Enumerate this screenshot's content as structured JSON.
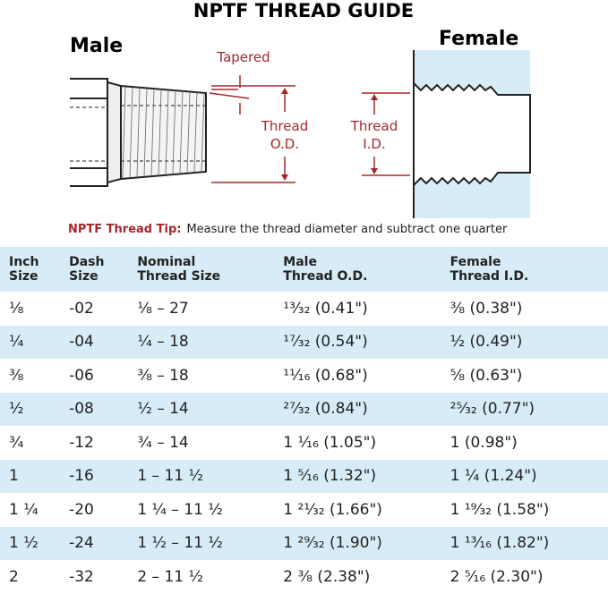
{
  "title": "NPTF THREAD GUIDE",
  "diagram": {
    "male": "Male",
    "female": "Female",
    "tapered": "Tapered",
    "thread_od": [
      "Thread",
      "O.D."
    ],
    "thread_id": [
      "Thread",
      "I.D."
    ]
  },
  "tip": {
    "label": "NPTF Thread Tip:",
    "text": "Measure the thread diameter and subtract one quarter"
  },
  "table": {
    "header": [
      [
        "Inch",
        "Size"
      ],
      [
        "Dash",
        "Size"
      ],
      [
        "Nominal",
        "Thread Size"
      ],
      [
        "Male",
        "Thread O.D."
      ],
      [
        "Female",
        "Thread I.D."
      ]
    ],
    "rows": [
      [
        "⅛",
        "-02",
        "⅛ – 27",
        "¹³⁄₃₂ (0.41\")",
        "⅜ (0.38\")"
      ],
      [
        "¼",
        "-04",
        "¼ – 18",
        "¹⁷⁄₃₂ (0.54\")",
        "½ (0.49\")"
      ],
      [
        "⅜",
        "-06",
        "⅜ – 18",
        "¹¹⁄₁₆ (0.68\")",
        "⅝ (0.63\")"
      ],
      [
        "½",
        "-08",
        "½ – 14",
        "²⁷⁄₃₂ (0.84\")",
        "²⁵⁄₃₂ (0.77\")"
      ],
      [
        "¾",
        "-12",
        "¾ – 14",
        "1 ¹⁄₁₆ (1.05\")",
        "1 (0.98\")"
      ],
      [
        "1",
        "-16",
        "1 – 11 ½",
        "1 ⁵⁄₁₆ (1.32\")",
        "1 ¼ (1.24\")"
      ],
      [
        "1 ¼",
        "-20",
        "1 ¼ – 11 ½",
        "1 ²¹⁄₃₂ (1.66\")",
        "1 ¹⁹⁄₃₂ (1.58\")"
      ],
      [
        "1 ½",
        "-24",
        "1 ½ – 11 ½",
        "1 ²⁹⁄₃₂ (1.90\")",
        "1 ¹³⁄₁₆ (1.82\")"
      ],
      [
        "2",
        "-32",
        "2 – 11 ½",
        "2 ⅜ (2.38\")",
        "2 ⁵⁄₁₆ (2.30\")"
      ]
    ]
  }
}
